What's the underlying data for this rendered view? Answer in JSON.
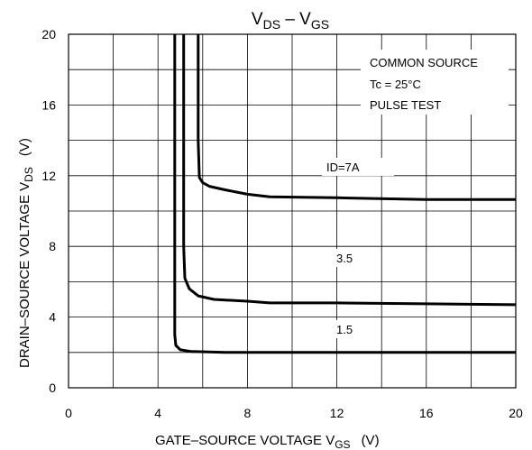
{
  "chart_data": {
    "type": "line",
    "title_main": "V",
    "title_sub1": "DS",
    "title_dash": " – V",
    "title_sub2": "GS",
    "xlabel_main": "GATE–SOURCE VOLTAGE  V",
    "xlabel_sub": "GS",
    "xlabel_unit": "(V)",
    "ylabel_main": "DRAIN–SOURCE VOLTAGE   V",
    "ylabel_sub": "DS",
    "ylabel_unit": "(V)",
    "xlim": [
      0,
      20
    ],
    "ylim": [
      0,
      20
    ],
    "x_ticks": [
      "0",
      "4",
      "8",
      "12",
      "16",
      "20"
    ],
    "y_ticks": [
      "0",
      "4",
      "8",
      "12",
      "16",
      "20"
    ],
    "x_tick_values": [
      0,
      4,
      8,
      12,
      16,
      20
    ],
    "y_tick_values": [
      0,
      4,
      8,
      12,
      16,
      20
    ],
    "grid": true,
    "conditions": [
      "COMMON SOURCE",
      "Tc = 25°C",
      "PULSE TEST"
    ],
    "series": [
      {
        "name": "ID=7A",
        "x": [
          5.8,
          5.8,
          5.85,
          6.0,
          6.3,
          7.0,
          8.0,
          9.0,
          12.0,
          16.0,
          20.0
        ],
        "y": [
          20.0,
          14.0,
          11.9,
          11.6,
          11.4,
          11.2,
          10.95,
          10.8,
          10.75,
          10.65,
          10.65
        ]
      },
      {
        "name": "3.5",
        "x": [
          5.15,
          5.15,
          5.2,
          5.4,
          5.8,
          6.5,
          8.0,
          9.0,
          12.0,
          16.0,
          20.0
        ],
        "y": [
          20.0,
          8.0,
          6.2,
          5.6,
          5.2,
          5.0,
          4.9,
          4.8,
          4.8,
          4.75,
          4.7
        ],
        "label": "3.5"
      },
      {
        "name": "1.5",
        "x": [
          4.75,
          4.75,
          4.8,
          5.0,
          5.5,
          7.0,
          9.0,
          12.0,
          16.0,
          20.0
        ],
        "y": [
          20.0,
          3.0,
          2.4,
          2.15,
          2.05,
          2.0,
          2.0,
          2.0,
          2.0,
          2.0
        ],
        "label": "1.5"
      }
    ]
  }
}
